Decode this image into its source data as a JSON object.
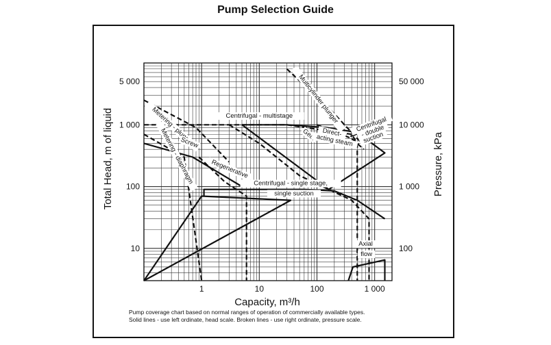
{
  "title": "Pump Selection Guide",
  "chart_data": {
    "type": "line",
    "title": "Pump Selection Guide",
    "xlabel": "Capacity, m³/h",
    "ylabel_left": "Total Head, m of liquid",
    "ylabel_right": "Pressure, kPa",
    "x_scale": "log",
    "y_scale": "log",
    "xlim": [
      0.1,
      2000
    ],
    "ylim_left": [
      3,
      10000
    ],
    "grid": true,
    "x_ticks": [
      {
        "value": 1,
        "label": "1"
      },
      {
        "value": 10,
        "label": "10"
      },
      {
        "value": 100,
        "label": "100"
      },
      {
        "value": 1000,
        "label": "1 000"
      }
    ],
    "y_ticks_left": [
      {
        "value": 10,
        "label": "10"
      },
      {
        "value": 100,
        "label": "100"
      },
      {
        "value": 1000,
        "label": "1 000"
      },
      {
        "value": 5000,
        "label": "5 000"
      }
    ],
    "y_ticks_right": [
      {
        "value": 10,
        "label": "100"
      },
      {
        "value": 100,
        "label": "1 000"
      },
      {
        "value": 1000,
        "label": "10 000"
      },
      {
        "value": 5000,
        "label": "50 000"
      }
    ],
    "series": [
      {
        "name": "Centrifugal - single stage, single suction",
        "style": "solid",
        "x": [
          0.1,
          1,
          35,
          0.1
        ],
        "y": [
          3,
          70,
          60,
          3
        ]
      },
      {
        "name": "Centrifugal - single stage, single suction",
        "style": "solid",
        "x": [
          1.1,
          1.1,
          60,
          200,
          500,
          1500
        ],
        "y": [
          70,
          90,
          90,
          85,
          60,
          30
        ]
      },
      {
        "name": "Centrifugal - multistage",
        "style": "solid",
        "x": [
          5,
          30,
          150,
          500,
          1500,
          160,
          5
        ],
        "y": [
          1000,
          1000,
          900,
          750,
          350,
          90,
          1000
        ]
      },
      {
        "name": "Centrifugal - double suction",
        "style": "solid",
        "x": [
          380,
          700
        ],
        "y": [
          650,
          800
        ]
      },
      {
        "name": "Axial flow",
        "style": "solid",
        "x": [
          350,
          420,
          1500,
          1500
        ],
        "y": [
          3,
          5,
          6.5,
          3
        ]
      },
      {
        "name": "Screw",
        "style": "solid",
        "x": [
          0.1,
          0.7,
          5
        ],
        "y": [
          500,
          300,
          100
        ]
      },
      {
        "name": "Metering - plunger",
        "style": "dashed",
        "x": [
          0.1,
          0.8,
          3
        ],
        "y": [
          2500,
          900,
          250
        ]
      },
      {
        "name": "Metering - diaphragm",
        "style": "dashed",
        "x": [
          0.1,
          0.5,
          1
        ],
        "y": [
          700,
          300,
          3
        ]
      },
      {
        "name": "Regenerative",
        "style": "dashed",
        "x": [
          0.9,
          2.5,
          6,
          6
        ],
        "y": [
          300,
          120,
          70,
          3
        ]
      },
      {
        "name": "Centrifugal - multistage",
        "style": "dashed",
        "x": [
          0.1,
          5,
          30,
          400,
          500,
          500
        ],
        "y": [
          1000,
          1000,
          1000,
          700,
          500,
          3
        ]
      },
      {
        "name": "Gear",
        "style": "dashed",
        "x": [
          3,
          10,
          50,
          400,
          800,
          800
        ],
        "y": [
          1000,
          500,
          150,
          60,
          30,
          3
        ]
      },
      {
        "name": "Multicylinder plunger",
        "style": "dashed",
        "x": [
          30,
          150,
          600
        ],
        "y": [
          8000,
          2000,
          500
        ]
      },
      {
        "name": "Direct-acting steam",
        "style": "dashed",
        "x": [
          100,
          400,
          650
        ],
        "y": [
          1000,
          600,
          400
        ]
      }
    ],
    "annotations": [
      {
        "text": "Centrifugal - multistage",
        "x": 10,
        "y": 1300,
        "angle": 0
      },
      {
        "text": "Multicylinder plunger",
        "x": 100,
        "y": 2500,
        "angle": 52
      },
      {
        "text": "Metering - plunger",
        "x": 0.3,
        "y": 900,
        "angle": 42
      },
      {
        "text": "Screw",
        "x": 0.6,
        "y": 480,
        "angle": 22
      },
      {
        "text": "Regenerative",
        "x": 3,
        "y": 180,
        "angle": 22
      },
      {
        "text": "Centrifugal - single stage,",
        "x": 35,
        "y": 105,
        "angle": 0
      },
      {
        "text": "single suction",
        "x": 40,
        "y": 72,
        "angle": 0
      },
      {
        "text": "Metering - diaphragm",
        "x": 0.35,
        "y": 300,
        "angle": 62
      },
      {
        "text": "Gear",
        "x": 70,
        "y": 650,
        "angle": 40
      },
      {
        "text": "Direct-",
        "x": 180,
        "y": 700,
        "angle": 12
      },
      {
        "text": "acting steam",
        "x": 200,
        "y": 520,
        "angle": 12
      },
      {
        "text": "Centrifugal",
        "x": 900,
        "y": 950,
        "angle": -20
      },
      {
        "text": "- double",
        "x": 950,
        "y": 740,
        "angle": -20
      },
      {
        "text": "suction",
        "x": 970,
        "y": 580,
        "angle": -20
      },
      {
        "text": "Axial",
        "x": 700,
        "y": 11,
        "angle": 0
      },
      {
        "text": "flow",
        "x": 720,
        "y": 7.5,
        "angle": 0
      }
    ],
    "footnote": [
      "Pump coverage chart based on normal ranges of operation of commercially available types.",
      "Solid lines - use left ordinate, head scale.  Broken lines - use right ordinate, pressure scale."
    ]
  }
}
